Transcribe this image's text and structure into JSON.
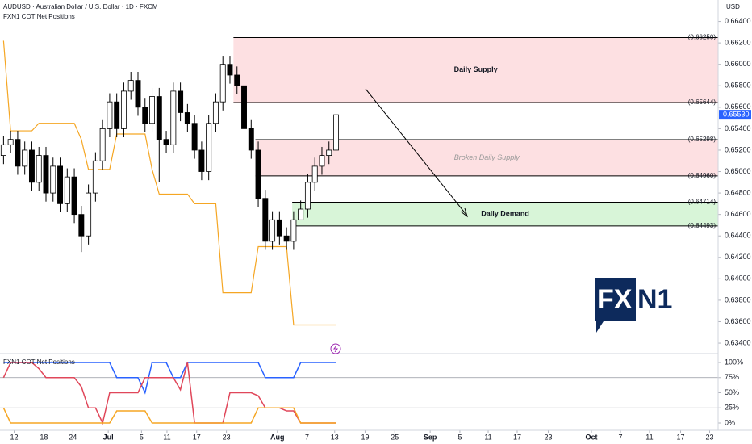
{
  "chart_data": [
    {
      "type": "candlestick",
      "title": "AUDUSD · Australian Dollar / U.S. Dollar · 1D · FXCM",
      "subtitle": "FXN1 COT Net Positions",
      "axis_label": "USD",
      "xlim": [
        -0.5,
        101
      ],
      "ylim": [
        0.6331,
        0.666
      ],
      "yticks": [
        {
          "value": 0.664,
          "label": "0.66400"
        },
        {
          "value": 0.662,
          "label": "0.66200"
        },
        {
          "value": 0.66,
          "label": "0.66000"
        },
        {
          "value": 0.658,
          "label": "0.65800"
        },
        {
          "value": 0.656,
          "label": "0.65600"
        },
        {
          "value": 0.654,
          "label": "0.65400"
        },
        {
          "value": 0.652,
          "label": "0.65200"
        },
        {
          "value": 0.65,
          "label": "0.65000"
        },
        {
          "value": 0.648,
          "label": "0.64800"
        },
        {
          "value": 0.646,
          "label": "0.64600"
        },
        {
          "value": 0.644,
          "label": "0.64400"
        },
        {
          "value": 0.642,
          "label": "0.64200"
        },
        {
          "value": 0.64,
          "label": "0.64000"
        },
        {
          "value": 0.638,
          "label": "0.63800"
        },
        {
          "value": 0.636,
          "label": "0.63600"
        },
        {
          "value": 0.634,
          "label": "0.63400"
        }
      ],
      "open": [
        0.6515,
        0.6525,
        0.653,
        0.6505,
        0.652,
        0.649,
        0.6515,
        0.648,
        0.6505,
        0.647,
        0.6495,
        0.646,
        0.644,
        0.648,
        0.651,
        0.654,
        0.6565,
        0.654,
        0.6575,
        0.6585,
        0.656,
        0.6545,
        0.657,
        0.653,
        0.6525,
        0.6575,
        0.6555,
        0.6545,
        0.652,
        0.65,
        0.6545,
        0.6565,
        0.66,
        0.659,
        0.658,
        0.654,
        0.652,
        0.6475,
        0.6435,
        0.6455,
        0.644,
        0.6435,
        0.6455,
        0.6465,
        0.649,
        0.6505,
        0.6515,
        0.652
      ],
      "high": [
        0.6533,
        0.6538,
        0.6538,
        0.6528,
        0.6528,
        0.6523,
        0.6523,
        0.6513,
        0.6513,
        0.6503,
        0.6503,
        0.6468,
        0.6488,
        0.6518,
        0.6548,
        0.6573,
        0.6573,
        0.6583,
        0.6593,
        0.6593,
        0.6568,
        0.6578,
        0.6578,
        0.6538,
        0.6583,
        0.6583,
        0.6563,
        0.6553,
        0.6528,
        0.6553,
        0.6573,
        0.6608,
        0.6608,
        0.6598,
        0.6588,
        0.6548,
        0.6528,
        0.6483,
        0.6463,
        0.6463,
        0.6448,
        0.6463,
        0.6473,
        0.6498,
        0.6513,
        0.6523,
        0.6528,
        0.6561
      ],
      "low": [
        0.6507,
        0.6517,
        0.6497,
        0.6497,
        0.6482,
        0.6482,
        0.6472,
        0.6472,
        0.6462,
        0.6462,
        0.6452,
        0.6425,
        0.6432,
        0.6472,
        0.6502,
        0.6532,
        0.6532,
        0.6532,
        0.6567,
        0.6552,
        0.6537,
        0.6537,
        0.649,
        0.6517,
        0.6517,
        0.6547,
        0.6537,
        0.6512,
        0.6492,
        0.6492,
        0.6537,
        0.6557,
        0.6582,
        0.6572,
        0.6532,
        0.6512,
        0.6467,
        0.6427,
        0.6427,
        0.6432,
        0.6427,
        0.6427,
        0.6457,
        0.6457,
        0.6482,
        0.6497,
        0.6507,
        0.6512
      ],
      "close": [
        0.6525,
        0.653,
        0.6505,
        0.652,
        0.649,
        0.6515,
        0.648,
        0.6505,
        0.647,
        0.6495,
        0.646,
        0.644,
        0.648,
        0.651,
        0.654,
        0.6565,
        0.654,
        0.6575,
        0.6585,
        0.656,
        0.6545,
        0.657,
        0.653,
        0.6525,
        0.6575,
        0.6555,
        0.6545,
        0.652,
        0.65,
        0.6545,
        0.6565,
        0.66,
        0.659,
        0.658,
        0.654,
        0.652,
        0.6475,
        0.6435,
        0.6455,
        0.644,
        0.6435,
        0.6455,
        0.6465,
        0.649,
        0.6505,
        0.6515,
        0.652,
        0.6553
      ],
      "last_value_label": "0.65530",
      "up_color": "#ffffff",
      "down_color": "#000000",
      "last_color": "#2962ff",
      "overlay": {
        "color": "#f5a623",
        "values": [
          0.6622,
          0.6538,
          0.6538,
          0.6538,
          0.6538,
          0.6545,
          0.6545,
          0.6545,
          0.6545,
          0.6545,
          0.6545,
          0.653,
          0.6502,
          0.6502,
          0.6502,
          0.6502,
          0.6535,
          0.6535,
          0.6535,
          0.6535,
          0.6535,
          0.6502,
          0.6479,
          0.6479,
          0.6479,
          0.6479,
          0.6479,
          0.647,
          0.647,
          0.647,
          0.647,
          0.6387,
          0.6387,
          0.6387,
          0.6387,
          0.6387,
          0.643,
          0.643,
          0.643,
          0.643,
          0.643,
          0.6357,
          0.6357,
          0.6357,
          0.6357,
          0.6357,
          0.6357,
          0.6357
        ]
      },
      "zones": [
        {
          "name": "Daily Supply",
          "start": 32.5,
          "top": 0.6625,
          "bottom": 0.65644,
          "top_label": "(0.66250)",
          "bottom_label": "(0.65644)",
          "color": "#fde0e2"
        },
        {
          "name": "Broken Daily Supply",
          "start": 35.6,
          "top": 0.65298,
          "bottom": 0.6496,
          "top_label": "(0.65298)",
          "bottom_label": "(0.64960)",
          "color": "#fde0e2"
        },
        {
          "name": "Daily Demand",
          "start": 40.8,
          "top": 0.64714,
          "bottom": 0.64493,
          "top_label": "(0.64714)",
          "bottom_label": "(0.64493)",
          "color": "#d8f5d8"
        }
      ],
      "logo": {
        "left": "FX",
        "right": "N1"
      }
    },
    {
      "type": "line",
      "title": "FXN1 COT Net Positions",
      "xlim": [
        -0.5,
        101
      ],
      "ylim": [
        -12,
        112
      ],
      "yticks": [
        {
          "value": 100,
          "label": "100%"
        },
        {
          "value": 75,
          "label": "75%"
        },
        {
          "value": 50,
          "label": "50%"
        },
        {
          "value": 25,
          "label": "25%"
        },
        {
          "value": 0,
          "label": "0%"
        }
      ],
      "hlines": [
        75,
        25
      ],
      "xticks": [
        {
          "value": 1.5,
          "label": "12"
        },
        {
          "value": 5.7,
          "label": "18"
        },
        {
          "value": 9.8,
          "label": "24"
        },
        {
          "value": 14.8,
          "label": "Jul"
        },
        {
          "value": 19.5,
          "label": "5"
        },
        {
          "value": 23.1,
          "label": "11"
        },
        {
          "value": 27.3,
          "label": "17"
        },
        {
          "value": 31.5,
          "label": "23"
        },
        {
          "value": 38.7,
          "label": "Aug"
        },
        {
          "value": 42.9,
          "label": "7"
        },
        {
          "value": 46.8,
          "label": "13"
        },
        {
          "value": 51.1,
          "label": "19"
        },
        {
          "value": 55.3,
          "label": "25"
        },
        {
          "value": 60.3,
          "label": "Sep"
        },
        {
          "value": 64.5,
          "label": "5"
        },
        {
          "value": 68.5,
          "label": "11"
        },
        {
          "value": 72.6,
          "label": "17"
        },
        {
          "value": 77.0,
          "label": "23"
        },
        {
          "value": 83.1,
          "label": "Oct"
        },
        {
          "value": 87.2,
          "label": "7"
        },
        {
          "value": 91.3,
          "label": "11"
        },
        {
          "value": 95.7,
          "label": "17"
        },
        {
          "value": 99.8,
          "label": "23"
        }
      ],
      "series": [
        {
          "color": "#2962ff",
          "values": [
            100,
            100,
            100,
            100,
            100,
            100,
            100,
            100,
            100,
            100,
            100,
            100,
            100,
            100,
            100,
            100,
            75,
            75,
            75,
            75,
            50,
            100,
            100,
            100,
            75,
            75,
            100,
            100,
            100,
            100,
            100,
            100,
            100,
            100,
            100,
            100,
            100,
            75,
            75,
            75,
            75,
            75,
            100,
            100,
            100,
            100,
            100,
            100
          ]
        },
        {
          "color": "#e0475a",
          "values": [
            75,
            100,
            100,
            100,
            100,
            90,
            75,
            75,
            75,
            75,
            75,
            60,
            25,
            25,
            0,
            50,
            50,
            50,
            50,
            50,
            75,
            75,
            75,
            75,
            75,
            55,
            100,
            0,
            0,
            0,
            0,
            0,
            50,
            50,
            50,
            50,
            45,
            25,
            25,
            25,
            20,
            20,
            0,
            0,
            0,
            0,
            0,
            0
          ]
        },
        {
          "color": "#f5a623",
          "values": [
            25,
            0,
            0,
            0,
            0,
            0,
            0,
            0,
            0,
            0,
            0,
            0,
            0,
            0,
            0,
            0,
            20,
            20,
            20,
            20,
            20,
            0,
            0,
            0,
            0,
            0,
            0,
            0,
            0,
            0,
            0,
            0,
            0,
            0,
            0,
            0,
            25,
            25,
            25,
            25,
            25,
            25,
            0,
            0,
            0,
            0,
            0,
            0
          ]
        }
      ]
    }
  ]
}
